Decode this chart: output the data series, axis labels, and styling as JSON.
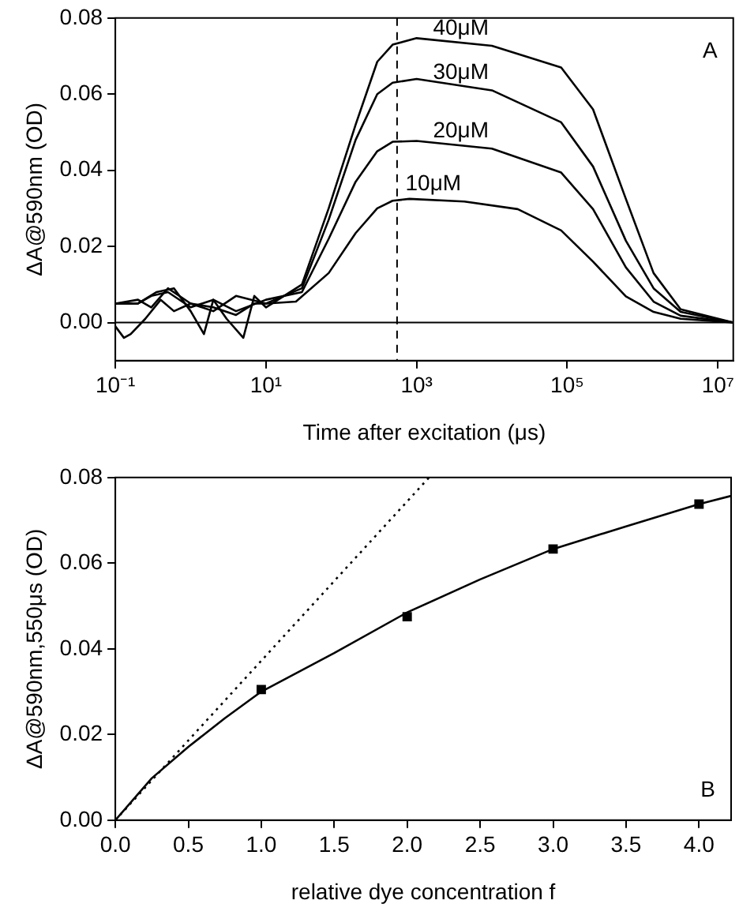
{
  "chart_data": [
    {
      "type": "line",
      "xlabel": "Time after excitation (μs)",
      "ylabel": "ΔA@590nm (OD)",
      "log": "x",
      "grid": false,
      "legend": false,
      "marker": "none",
      "line_style": "solid",
      "xlim": [
        0.1,
        16000000
      ],
      "xticks": [
        {
          "value": 0.1,
          "label": "10⁻¹"
        },
        {
          "value": 10,
          "label": "10¹"
        },
        {
          "value": 1000,
          "label": "10³"
        },
        {
          "value": 100000,
          "label": "10⁵"
        },
        {
          "value": 10000000,
          "label": "10⁷"
        }
      ],
      "ylim": [
        -0.01,
        0.08
      ],
      "yticks": [
        {
          "value": 0,
          "label": "0.00"
        },
        {
          "value": 0.02,
          "label": "0.02"
        },
        {
          "value": 0.04,
          "label": "0.04"
        },
        {
          "value": 0.06,
          "label": "0.06"
        },
        {
          "value": 0.08,
          "label": "0.08"
        }
      ],
      "series": [
        {
          "name": "10μM",
          "color": "#000000",
          "x": [
            0.1,
            0.13,
            0.16,
            0.25,
            0.4,
            0.6,
            1,
            2,
            4,
            7,
            10,
            25,
            68,
            155,
            300,
            480,
            800,
            4300,
            22000,
            83000,
            220000,
            600000,
            1400000,
            3200000,
            16000000
          ],
          "values": [
            -0.001,
            -0.004,
            -0.003,
            0.001,
            0.006,
            0.003,
            0.005,
            0.004,
            0.002,
            0.005,
            0.005,
            0.0055,
            0.013,
            0.0235,
            0.03,
            0.032,
            0.0325,
            0.0318,
            0.0298,
            0.0242,
            0.016,
            0.0069,
            0.0028,
            0.001,
            0
          ]
        },
        {
          "name": "20μM",
          "color": "#000000",
          "x": [
            0.1,
            0.2,
            0.3,
            0.5,
            1,
            2,
            4,
            10,
            30,
            68,
            155,
            300,
            480,
            1000,
            10000,
            83000,
            220000,
            600000,
            1400000,
            3200000,
            16000000
          ],
          "values": [
            0.005,
            0.005,
            0.007,
            0.008,
            0.004,
            0.006,
            0.003,
            0.006,
            0.008,
            0.022,
            0.037,
            0.045,
            0.0475,
            0.0477,
            0.0457,
            0.0394,
            0.0298,
            0.0145,
            0.0055,
            0.0018,
            0
          ]
        },
        {
          "name": "30μM",
          "color": "#000000",
          "x": [
            0.1,
            0.2,
            0.3,
            0.5,
            1,
            2,
            4,
            10,
            30,
            68,
            155,
            300,
            480,
            1000,
            10000,
            83000,
            220000,
            600000,
            1400000,
            3200000,
            16000000
          ],
          "values": [
            0.005,
            0.006,
            0.004,
            0.009,
            0.005,
            0.003,
            0.007,
            0.005,
            0.009,
            0.027,
            0.048,
            0.06,
            0.063,
            0.064,
            0.061,
            0.0526,
            0.041,
            0.0215,
            0.009,
            0.0028,
            0
          ]
        },
        {
          "name": "40μM",
          "color": "#000000",
          "x": [
            0.1,
            0.2,
            0.35,
            0.6,
            1,
            1.5,
            2,
            3,
            5,
            7,
            10,
            30,
            68,
            155,
            300,
            480,
            1000,
            10000,
            83000,
            220000,
            600000,
            1400000,
            3200000,
            16000000
          ],
          "values": [
            0.005,
            0.005,
            0.008,
            0.009,
            0.003,
            -0.003,
            0.006,
            0.001,
            -0.004,
            0.007,
            0.004,
            0.01,
            0.03,
            0.052,
            0.0685,
            0.073,
            0.0747,
            0.0727,
            0.067,
            0.056,
            0.0325,
            0.013,
            0.0035,
            0
          ]
        }
      ],
      "ref_lines": [
        {
          "axis": "y",
          "value": 0,
          "color": "#000000",
          "line_style": "solid"
        },
        {
          "axis": "x",
          "value": 550,
          "color": "#000000",
          "line_style": "dashed"
        }
      ],
      "annotations": [
        "A"
      ]
    },
    {
      "type": "scatter",
      "xlabel": "relative dye concentration f",
      "ylabel": "ΔA@590nm,550μs (OD)",
      "grid": false,
      "legend": false,
      "marker": "square",
      "xlim": [
        0,
        4.22
      ],
      "xticks": [
        {
          "value": 0,
          "label": "0.0"
        },
        {
          "value": 0.5,
          "label": "0.5"
        },
        {
          "value": 1,
          "label": "1.0"
        },
        {
          "value": 1.5,
          "label": "1.5"
        },
        {
          "value": 2,
          "label": "2.0"
        },
        {
          "value": 2.5,
          "label": "2.5"
        },
        {
          "value": 3,
          "label": "3.0"
        },
        {
          "value": 3.5,
          "label": "3.5"
        },
        {
          "value": 4,
          "label": "4.0"
        }
      ],
      "ylim": [
        0,
        0.08
      ],
      "yticks": [
        {
          "value": 0,
          "label": "0.00"
        },
        {
          "value": 0.02,
          "label": "0.02"
        },
        {
          "value": 0.04,
          "label": "0.04"
        },
        {
          "value": 0.06,
          "label": "0.06"
        },
        {
          "value": 0.08,
          "label": "0.08"
        }
      ],
      "series": [
        {
          "type": "scatter",
          "color": "#000000",
          "x": [
            1,
            2,
            3,
            4
          ],
          "values": [
            0.0305,
            0.0475,
            0.0633,
            0.0738
          ]
        },
        {
          "type": "line",
          "color": "#000000",
          "line_style": "solid",
          "marker": "none",
          "x": [
            0,
            0.25,
            0.5,
            0.75,
            1,
            1.5,
            2,
            2.5,
            3,
            3.5,
            4,
            4.22
          ],
          "values": [
            0,
            0.0098,
            0.0171,
            0.0238,
            0.03,
            0.039,
            0.0485,
            0.0562,
            0.0633,
            0.0686,
            0.0738,
            0.0757
          ]
        },
        {
          "type": "line",
          "color": "#000000",
          "line_style": "dotted",
          "marker": "none",
          "x": [
            0,
            2.15
          ],
          "values": [
            0,
            0.08
          ]
        }
      ],
      "annotations": [
        "B"
      ]
    }
  ]
}
